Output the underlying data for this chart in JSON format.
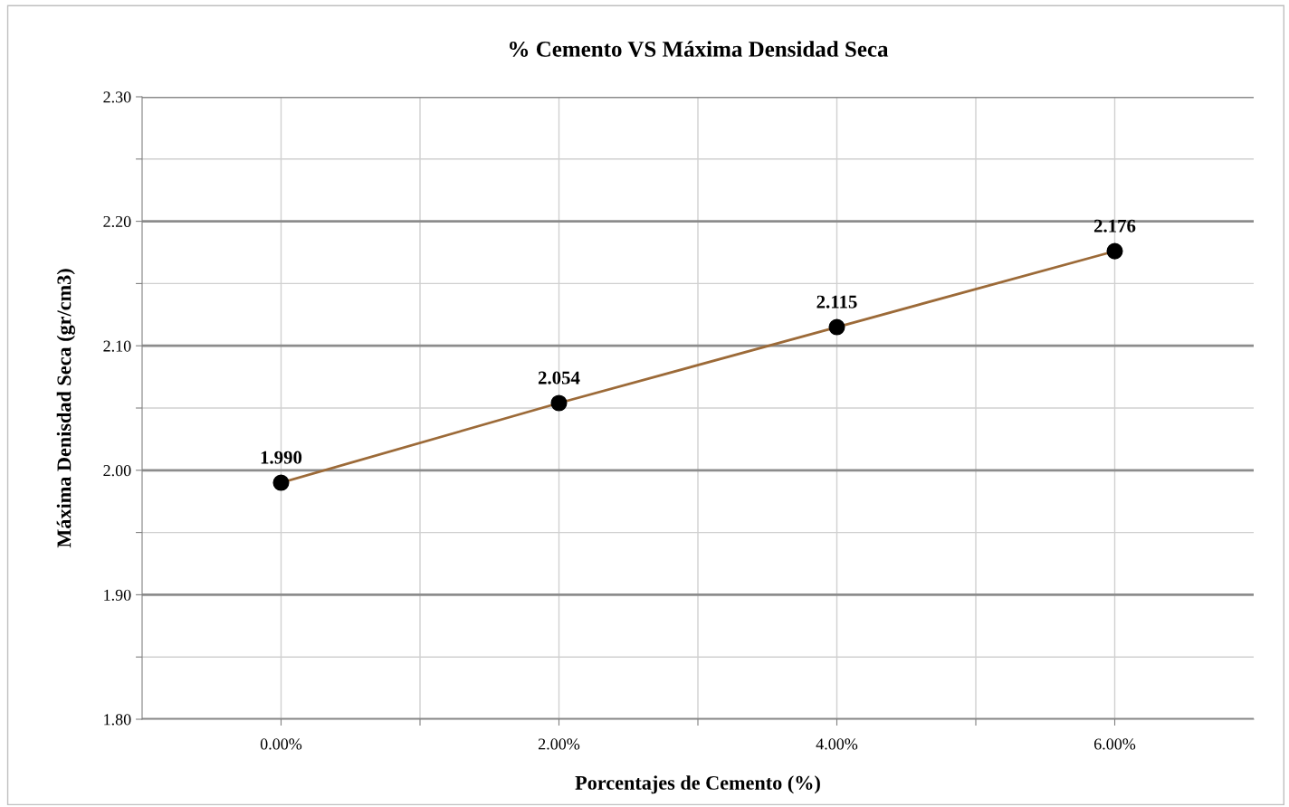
{
  "chart_data": {
    "type": "line",
    "title": "% Cemento VS Máxima Densidad Seca",
    "xlabel": "Porcentajes de Cemento (%)",
    "ylabel": "Máxima Denisdad Seca (gr/cm3)",
    "x": [
      0,
      2,
      4,
      6
    ],
    "series": [
      {
        "color": "#9c6a38",
        "values": [
          1.99,
          2.054,
          2.115,
          2.176
        ],
        "value_labels": [
          "1.990",
          "2.054",
          "2.115",
          "2.176"
        ]
      }
    ],
    "marker": "circle",
    "line_style": "solid",
    "grid": true,
    "legend": false,
    "xlim": [
      -1,
      7
    ],
    "xticks": [
      {
        "value": 0,
        "label": "0.00%"
      },
      {
        "value": 1,
        "label": null
      },
      {
        "value": 2,
        "label": "2.00%"
      },
      {
        "value": 3,
        "label": null
      },
      {
        "value": 4,
        "label": "4.00%"
      },
      {
        "value": 5,
        "label": null
      },
      {
        "value": 6,
        "label": "6.00%"
      }
    ],
    "ylim": [
      1.8,
      2.3
    ],
    "yticks": [
      {
        "value": 1.8,
        "label": "1.80"
      },
      {
        "value": 1.85,
        "label": null
      },
      {
        "value": 1.9,
        "label": "1.90"
      },
      {
        "value": 1.95,
        "label": null
      },
      {
        "value": 2.0,
        "label": "2.00"
      },
      {
        "value": 2.05,
        "label": null
      },
      {
        "value": 2.1,
        "label": "2.10"
      },
      {
        "value": 2.15,
        "label": null
      },
      {
        "value": 2.2,
        "label": "2.20"
      },
      {
        "value": 2.25,
        "label": null
      },
      {
        "value": 2.3,
        "label": "2.30"
      }
    ]
  }
}
